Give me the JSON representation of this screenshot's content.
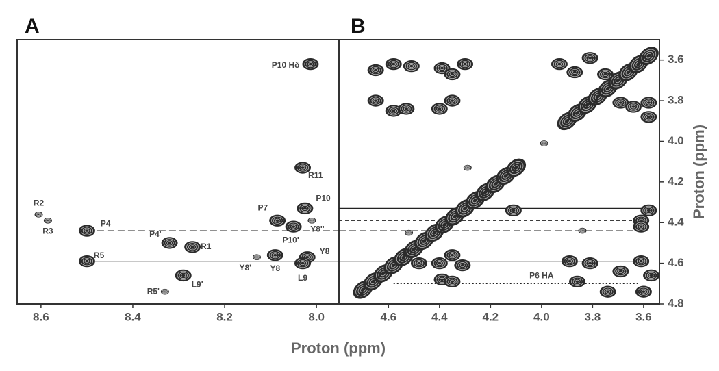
{
  "chart_data": [
    {
      "type": "scatter",
      "title": "A",
      "xlabel": "Proton (ppm)",
      "xlim": [
        8.652,
        7.951
      ],
      "xticks": [
        8.6,
        8.4,
        8.2,
        {
          "value": 8.0,
          "label": "8.0"
        }
      ],
      "ylim": [
        4.8,
        3.5
      ],
      "x": [
        8.013,
        8.03,
        8.025,
        8.085,
        8.05,
        8.01,
        8.605,
        8.585,
        8.5,
        8.32,
        8.27,
        8.5,
        8.13,
        8.09,
        8.02,
        8.03,
        8.29,
        8.33
      ],
      "y": [
        3.62,
        4.13,
        4.33,
        4.39,
        4.42,
        4.39,
        4.36,
        4.39,
        4.44,
        4.5,
        4.52,
        4.59,
        4.57,
        4.56,
        4.57,
        4.6,
        4.66,
        4.74
      ],
      "labels": [
        "P10 Hδ",
        "R11",
        "P10",
        "P7",
        "P10'",
        "Y8''",
        "R2",
        "R3",
        "P4",
        "P4'",
        "R1",
        "R5",
        "Y8'",
        "Y8",
        "Y8",
        "L9",
        "L9'",
        "R5'"
      ],
      "hlines": [
        {
          "y": 4.44,
          "from": 8.5,
          "dash": "long"
        },
        {
          "y": 4.59,
          "from": 8.5,
          "dash": "solid"
        }
      ]
    },
    {
      "type": "scatter",
      "title": "B",
      "ylabel": "Proton (ppm)",
      "xlim": [
        4.794,
        3.538
      ],
      "xticks": [
        4.6,
        4.4,
        4.2,
        {
          "value": 4.0,
          "label": "4.0"
        },
        3.8,
        3.6
      ],
      "ylim": [
        4.8,
        3.5
      ],
      "yticks": [
        3.6,
        3.8,
        {
          "value": 4.0,
          "label": "4.0"
        },
        4.2,
        4.4,
        4.6,
        4.8
      ],
      "x": [
        4.65,
        4.58,
        4.51,
        4.39,
        4.35,
        4.3,
        4.65,
        4.58,
        4.53,
        4.4,
        4.35,
        3.93,
        3.87,
        3.81,
        3.75,
        3.69,
        3.64,
        3.58,
        3.58,
        4.29,
        3.99,
        4.11,
        4.52,
        3.84,
        3.61,
        3.58,
        3.61,
        4.48,
        4.4,
        4.35,
        4.31,
        4.39,
        4.35,
        3.89,
        3.81,
        3.86,
        3.74,
        3.69,
        3.61,
        3.57,
        3.6
      ],
      "y": [
        3.65,
        3.62,
        3.63,
        3.64,
        3.67,
        3.62,
        3.8,
        3.85,
        3.84,
        3.84,
        3.8,
        3.62,
        3.66,
        3.59,
        3.67,
        3.81,
        3.83,
        3.81,
        3.88,
        4.13,
        4.01,
        4.34,
        4.45,
        4.44,
        4.39,
        4.34,
        4.42,
        4.6,
        4.6,
        4.56,
        4.61,
        4.68,
        4.69,
        4.59,
        4.6,
        4.69,
        4.74,
        4.64,
        4.59,
        4.66,
        4.74
      ],
      "diagonal": {
        "x": [
          4.7,
          4.66,
          4.62,
          4.58,
          4.54,
          4.5,
          4.46,
          4.42,
          4.38,
          4.34,
          4.3,
          4.26,
          4.22,
          4.18,
          4.14,
          4.1,
          3.9,
          3.86,
          3.82,
          3.78,
          3.74,
          3.7,
          3.66,
          3.62,
          3.58
        ],
        "y": [
          4.73,
          4.69,
          4.65,
          4.61,
          4.57,
          4.53,
          4.49,
          4.45,
          4.41,
          4.37,
          4.33,
          4.29,
          4.25,
          4.21,
          4.17,
          4.13,
          3.9,
          3.86,
          3.82,
          3.78,
          3.74,
          3.7,
          3.66,
          3.62,
          3.58
        ]
      },
      "annotation": "P6 HA",
      "hlines": [
        {
          "y": 4.33,
          "dash": "solid",
          "to": 3.6
        },
        {
          "y": 4.39,
          "dash": "short",
          "to": 3.62
        },
        {
          "y": 4.44,
          "dash": "long",
          "to": 3.62
        },
        {
          "y": 4.59,
          "dash": "solid",
          "to": 3.62
        },
        {
          "y": 4.7,
          "from": 4.58,
          "dash": "dotted",
          "to": 3.62
        }
      ]
    }
  ]
}
